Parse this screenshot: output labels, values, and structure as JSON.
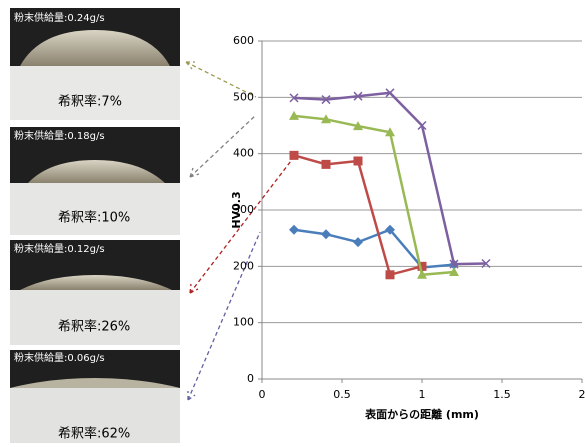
{
  "samples": [
    {
      "feed": "粉末供給量:0.24g/s",
      "dilution": "希釈率:7%"
    },
    {
      "feed": "粉末供給量:0.18g/s",
      "dilution": "希釈率:10%"
    },
    {
      "feed": "粉末供給量:0.12g/s",
      "dilution": "希釈率:26%"
    },
    {
      "feed": "粉末供給量:0.06g/s",
      "dilution": "希釈率:62%"
    }
  ],
  "chart_data": {
    "type": "line",
    "x_label": "表面からの距離 (mm)",
    "y_label": "HV0.3",
    "xlim": [
      0,
      2
    ],
    "xticks": [
      0,
      0.5,
      1,
      1.5,
      2
    ],
    "ylim": [
      0,
      600
    ],
    "yticks": [
      0,
      100,
      200,
      300,
      400,
      500,
      600
    ],
    "grid": true,
    "series": [
      {
        "color": "#4a7ebb",
        "marker": "diamond",
        "x": [
          0.2,
          0.4,
          0.6,
          0.8,
          1.0,
          1.2
        ],
        "values": [
          265,
          257,
          243,
          265,
          198,
          203
        ]
      },
      {
        "color": "#be4b48",
        "marker": "square",
        "x": [
          0.2,
          0.4,
          0.6,
          0.8,
          1.0
        ],
        "values": [
          397,
          381,
          387,
          185,
          200
        ]
      },
      {
        "color": "#98b954",
        "marker": "triangle",
        "x": [
          0.2,
          0.4,
          0.6,
          0.8,
          1.0,
          1.2
        ],
        "values": [
          467,
          461,
          449,
          438,
          185,
          190
        ]
      },
      {
        "color": "#7d60a0",
        "marker": "cross",
        "x": [
          0.2,
          0.4,
          0.6,
          0.8,
          1.0,
          1.2,
          1.4
        ],
        "values": [
          499,
          496,
          502,
          508,
          450,
          204,
          205
        ]
      }
    ]
  }
}
